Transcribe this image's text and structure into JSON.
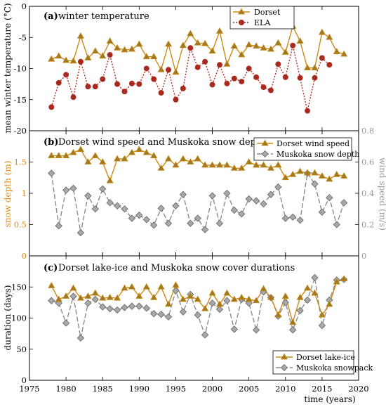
{
  "colors": {
    "dorset": "#c98a17",
    "ela": "#b22a1e",
    "ela_fill": "#a52a1f",
    "muskoka": "#8c8c8c",
    "muskoka_fill": "#a8a8a8",
    "axis": "#000000",
    "snow_axis": "#d98c1a",
    "wind_axis": "#9a9a9a"
  },
  "x_axis": {
    "label": "time (years)",
    "ticks": [
      "1975",
      "1980",
      "1985",
      "1990",
      "1995",
      "2000",
      "2005",
      "2010",
      "2015",
      "2020"
    ],
    "range": [
      1975,
      2020
    ]
  },
  "chart_data": [
    {
      "type": "line",
      "panel": "a",
      "title_tag": "(a)",
      "title": "winter temperature",
      "ylabel": "mean winter temperature (°C)",
      "ylim": [
        -20,
        0
      ],
      "yticks": [
        "0",
        "-5",
        "-10",
        "-15",
        "-20"
      ],
      "legend_position": "top-center",
      "series": [
        {
          "name": "Dorset",
          "marker": "triangle",
          "x": [
            1978,
            1979,
            1980,
            1981,
            1982,
            1983,
            1984,
            1985,
            1986,
            1987,
            1988,
            1989,
            1990,
            1991,
            1992,
            1993,
            1994,
            1995,
            1996,
            1997,
            1998,
            1999,
            2000,
            2001,
            2002,
            2003,
            2004,
            2005,
            2006,
            2007,
            2008,
            2009,
            2010,
            2011,
            2012,
            2013,
            2014,
            2015,
            2016,
            2017,
            2018
          ],
          "values": [
            -8.5,
            -8.0,
            -8.7,
            -8.8,
            -4.8,
            -8.3,
            -7.2,
            -8.0,
            -5.6,
            -6.7,
            -7.0,
            -6.9,
            -6.1,
            -8.1,
            -8.1,
            -10.2,
            -6.1,
            -10.6,
            -6.3,
            -4.4,
            -5.9,
            -6.0,
            -7.2,
            -4.0,
            -9.3,
            -6.4,
            -7.8,
            -6.2,
            -6.4,
            -6.7,
            -6.9,
            -5.9,
            -7.4,
            -3.2,
            -5.6,
            -9.9,
            -9.9,
            -4.2,
            -5.0,
            -7.3,
            -7.7
          ]
        },
        {
          "name": "ELA",
          "marker": "circle",
          "x": [
            1978,
            1979,
            1980,
            1981,
            1982,
            1983,
            1984,
            1985,
            1986,
            1987,
            1988,
            1989,
            1990,
            1991,
            1992,
            1993,
            1994,
            1995,
            1996,
            1997,
            1998,
            1999,
            2000,
            2001,
            2002,
            2003,
            2004,
            2005,
            2006,
            2007,
            2008,
            2009,
            2010,
            2011,
            2012,
            2013,
            2014,
            2015,
            2016
          ],
          "values": [
            -16.2,
            -12.3,
            -11.0,
            -14.6,
            -8.9,
            -12.9,
            -12.9,
            -11.7,
            -7.8,
            -12.5,
            -13.7,
            -12.4,
            -12.5,
            -10.0,
            -11.7,
            -13.9,
            -10.2,
            -15.0,
            -13.2,
            -6.7,
            -9.8,
            -8.9,
            -12.6,
            -9.4,
            -12.4,
            -11.6,
            -12.1,
            -10.0,
            -11.4,
            -13.0,
            -13.5,
            -9.3,
            -11.4,
            -6.3,
            -11.5,
            -16.8,
            -11.5,
            -8.3,
            -9.4
          ]
        }
      ]
    },
    {
      "type": "line",
      "panel": "b",
      "title_tag": "(b)",
      "title": "Dorset wind speed and Muskoka snow depth",
      "ylabel_left": "snow depth (m)",
      "ylabel_right": "wind speed (m/s)",
      "ylim_left": [
        0,
        2
      ],
      "ylim_right": [
        0,
        0.8
      ],
      "yticks_left": [
        "0",
        "0.5",
        "1",
        "1.5"
      ],
      "yticks_right": [
        "0",
        "0.2",
        "0.4",
        "0.6",
        "0.8"
      ],
      "legend_position": "top-right",
      "series": [
        {
          "name": "Dorset wind speed",
          "axis": "right",
          "marker": "triangle",
          "x": [
            1978,
            1979,
            1980,
            1981,
            1982,
            1983,
            1984,
            1985,
            1986,
            1987,
            1988,
            1989,
            1990,
            1991,
            1992,
            1993,
            1994,
            1995,
            1996,
            1997,
            1998,
            1999,
            2000,
            2001,
            2002,
            2003,
            2004,
            2005,
            2006,
            2007,
            2008,
            2009,
            2010,
            2011,
            2012,
            2013,
            2014,
            2015,
            2016,
            2017,
            2018
          ],
          "values": [
            0.64,
            0.64,
            0.64,
            0.66,
            0.68,
            0.6,
            0.64,
            0.6,
            0.48,
            0.62,
            0.62,
            0.66,
            0.68,
            0.66,
            0.64,
            0.56,
            0.62,
            0.58,
            0.62,
            0.6,
            0.62,
            0.58,
            0.58,
            0.58,
            0.58,
            0.56,
            0.56,
            0.6,
            0.58,
            0.58,
            0.56,
            0.58,
            0.5,
            0.52,
            0.54,
            0.53,
            0.53,
            0.51,
            0.49,
            0.52,
            0.51
          ]
        },
        {
          "name": "Muskoka snow depth",
          "axis": "left",
          "marker": "diamond",
          "x": [
            1978,
            1979,
            1980,
            1981,
            1982,
            1983,
            1984,
            1985,
            1986,
            1987,
            1988,
            1989,
            1990,
            1991,
            1992,
            1993,
            1994,
            1995,
            1996,
            1997,
            1998,
            1999,
            2000,
            2001,
            2002,
            2003,
            2004,
            2005,
            2006,
            2007,
            2008,
            2009,
            2010,
            2011,
            2012,
            2013,
            2014,
            2015,
            2016,
            2017,
            2018
          ],
          "values": [
            1.32,
            0.48,
            1.05,
            1.08,
            0.37,
            0.96,
            0.75,
            1.07,
            0.85,
            0.8,
            0.75,
            0.6,
            0.65,
            0.58,
            0.49,
            0.76,
            0.52,
            0.8,
            0.98,
            0.52,
            0.6,
            0.42,
            0.96,
            0.52,
            1.0,
            0.73,
            0.67,
            0.91,
            0.88,
            0.83,
            0.98,
            1.1,
            0.6,
            0.62,
            0.57,
            1.32,
            1.15,
            0.7,
            0.93,
            0.5,
            0.85
          ]
        }
      ]
    },
    {
      "type": "line",
      "panel": "c",
      "title_tag": "(c)",
      "title": "Dorset lake-ice and Muskoka snow cover durations",
      "ylabel": "duration (days)",
      "ylim": [
        0,
        200
      ],
      "yticks": [
        "0",
        "50",
        "100",
        "150"
      ],
      "legend_position": "bottom-right",
      "series": [
        {
          "name": "Dorset lake-ice",
          "marker": "triangle",
          "x": [
            1978,
            1979,
            1980,
            1981,
            1982,
            1983,
            1984,
            1985,
            1986,
            1987,
            1988,
            1989,
            1990,
            1991,
            1992,
            1993,
            1994,
            1995,
            1996,
            1997,
            1998,
            1999,
            2000,
            2001,
            2002,
            2003,
            2004,
            2005,
            2006,
            2007,
            2008,
            2009,
            2010,
            2011,
            2012,
            2013,
            2014,
            2015,
            2016,
            2017,
            2018
          ],
          "values": [
            152,
            130,
            135,
            148,
            132,
            135,
            140,
            132,
            133,
            132,
            148,
            150,
            135,
            150,
            133,
            150,
            122,
            153,
            130,
            135,
            130,
            115,
            140,
            122,
            140,
            130,
            133,
            130,
            128,
            147,
            133,
            105,
            135,
            93,
            133,
            148,
            140,
            105,
            122,
            158,
            163
          ]
        },
        {
          "name": "Muskoka snowpack",
          "marker": "diamond",
          "x": [
            1978,
            1979,
            1980,
            1981,
            1982,
            1983,
            1984,
            1985,
            1986,
            1987,
            1988,
            1989,
            1990,
            1991,
            1992,
            1993,
            1994,
            1995,
            1996,
            1997,
            1998,
            1999,
            2000,
            2001,
            2002,
            2003,
            2004,
            2005,
            2006,
            2007,
            2008,
            2009,
            2010,
            2011,
            2012,
            2013,
            2014,
            2015,
            2016,
            2017,
            2018
          ],
          "values": [
            128,
            124,
            92,
            135,
            68,
            124,
            130,
            118,
            115,
            113,
            117,
            119,
            119,
            116,
            107,
            106,
            102,
            144,
            110,
            138,
            105,
            73,
            124,
            114,
            128,
            82,
            130,
            124,
            81,
            142,
            133,
            103,
            125,
            81,
            112,
            129,
            165,
            88,
            129,
            161,
            162
          ]
        }
      ]
    }
  ]
}
